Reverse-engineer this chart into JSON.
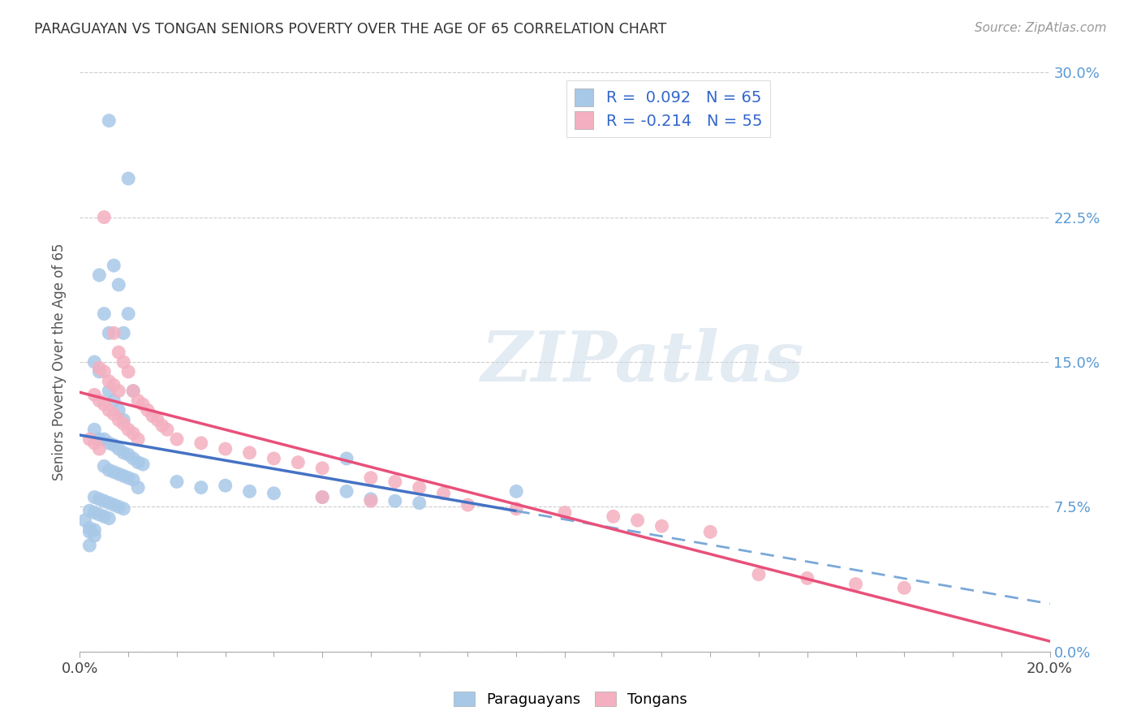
{
  "title": "PARAGUAYAN VS TONGAN SENIORS POVERTY OVER THE AGE OF 65 CORRELATION CHART",
  "source": "Source: ZipAtlas.com",
  "ylabel": "Seniors Poverty Over the Age of 65",
  "paraguayan_R": 0.092,
  "paraguayan_N": 65,
  "tongan_R": -0.214,
  "tongan_N": 55,
  "paraguayan_color": "#a8c8e8",
  "tongan_color": "#f4b0c0",
  "paraguayan_line_color": "#4472c4",
  "tongan_line_color": "#e8507a",
  "dashed_line_color": "#7aa8d8",
  "xlim": [
    0.0,
    0.2
  ],
  "ylim": [
    0.0,
    0.3
  ],
  "yticks": [
    0.0,
    0.075,
    0.15,
    0.225,
    0.3
  ],
  "ytick_labels_right": [
    "0.0%",
    "7.5%",
    "15.0%",
    "22.5%",
    "30.0%"
  ],
  "right_tick_color": "#5a9ad4",
  "watermark_text": "ZIPatlas",
  "legend_label_1": "R =  0.092   N = 65",
  "legend_label_2": "R = -0.214   N = 55",
  "bottom_label_1": "Paraguayans",
  "bottom_label_2": "Tongans",
  "par_scatter": {
    "x": [
      0.006,
      0.01,
      0.007,
      0.008,
      0.004,
      0.005,
      0.006,
      0.009,
      0.003,
      0.004,
      0.006,
      0.007,
      0.008,
      0.009,
      0.01,
      0.011,
      0.003,
      0.004,
      0.005,
      0.006,
      0.007,
      0.008,
      0.009,
      0.01,
      0.011,
      0.012,
      0.013,
      0.005,
      0.006,
      0.007,
      0.008,
      0.009,
      0.01,
      0.011,
      0.012,
      0.02,
      0.025,
      0.03,
      0.035,
      0.04,
      0.05,
      0.055,
      0.06,
      0.065,
      0.07,
      0.003,
      0.004,
      0.005,
      0.006,
      0.007,
      0.008,
      0.009,
      0.002,
      0.003,
      0.004,
      0.005,
      0.006,
      0.001,
      0.002,
      0.003,
      0.002,
      0.003,
      0.002,
      0.09,
      0.055
    ],
    "y": [
      0.275,
      0.245,
      0.2,
      0.19,
      0.195,
      0.175,
      0.165,
      0.165,
      0.15,
      0.145,
      0.135,
      0.13,
      0.125,
      0.12,
      0.175,
      0.135,
      0.115,
      0.11,
      0.11,
      0.108,
      0.107,
      0.105,
      0.103,
      0.102,
      0.1,
      0.098,
      0.097,
      0.096,
      0.094,
      0.093,
      0.092,
      0.091,
      0.09,
      0.089,
      0.085,
      0.088,
      0.085,
      0.086,
      0.083,
      0.082,
      0.08,
      0.083,
      0.079,
      0.078,
      0.077,
      0.08,
      0.079,
      0.078,
      0.077,
      0.076,
      0.075,
      0.074,
      0.073,
      0.072,
      0.071,
      0.07,
      0.069,
      0.068,
      0.064,
      0.063,
      0.062,
      0.06,
      0.055,
      0.083,
      0.1
    ]
  },
  "ton_scatter": {
    "x": [
      0.005,
      0.007,
      0.008,
      0.009,
      0.004,
      0.005,
      0.006,
      0.007,
      0.008,
      0.003,
      0.004,
      0.005,
      0.006,
      0.007,
      0.008,
      0.009,
      0.01,
      0.011,
      0.012,
      0.01,
      0.011,
      0.012,
      0.013,
      0.014,
      0.015,
      0.016,
      0.017,
      0.018,
      0.002,
      0.003,
      0.004,
      0.02,
      0.025,
      0.03,
      0.035,
      0.04,
      0.045,
      0.05,
      0.06,
      0.065,
      0.07,
      0.075,
      0.05,
      0.06,
      0.08,
      0.09,
      0.1,
      0.11,
      0.115,
      0.12,
      0.13,
      0.14,
      0.15,
      0.16,
      0.17
    ],
    "y": [
      0.225,
      0.165,
      0.155,
      0.15,
      0.147,
      0.145,
      0.14,
      0.138,
      0.135,
      0.133,
      0.13,
      0.128,
      0.125,
      0.123,
      0.12,
      0.118,
      0.115,
      0.113,
      0.11,
      0.145,
      0.135,
      0.13,
      0.128,
      0.125,
      0.122,
      0.12,
      0.117,
      0.115,
      0.11,
      0.108,
      0.105,
      0.11,
      0.108,
      0.105,
      0.103,
      0.1,
      0.098,
      0.095,
      0.09,
      0.088,
      0.085,
      0.082,
      0.08,
      0.078,
      0.076,
      0.074,
      0.072,
      0.07,
      0.068,
      0.065,
      0.062,
      0.04,
      0.038,
      0.035,
      0.033
    ]
  }
}
